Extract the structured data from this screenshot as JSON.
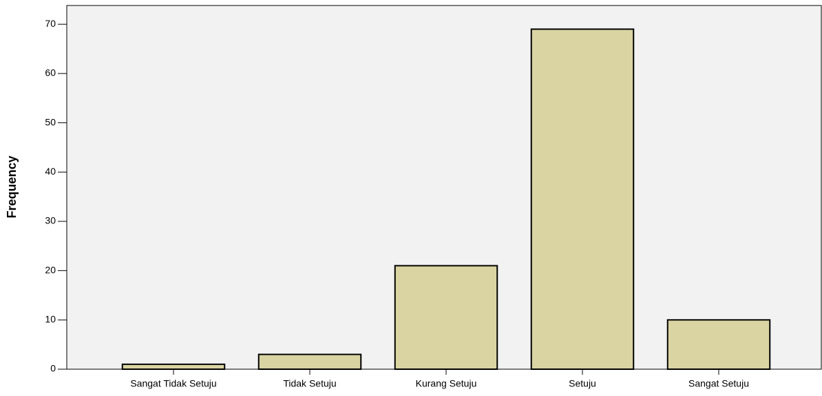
{
  "chart_data": {
    "type": "bar",
    "y_label": "Frequency",
    "categories": [
      "Sangat Tidak Setuju",
      "Tidak Setuju",
      "Kurang Setuju",
      "Setuju",
      "Sangat Setuju"
    ],
    "values": [
      1,
      3,
      21,
      69,
      10
    ],
    "color": "#d9d4a2",
    "ylim": [
      0,
      73.8
    ],
    "yticks": [
      0,
      10,
      20,
      30,
      40,
      50,
      60,
      70
    ],
    "grid": false
  }
}
